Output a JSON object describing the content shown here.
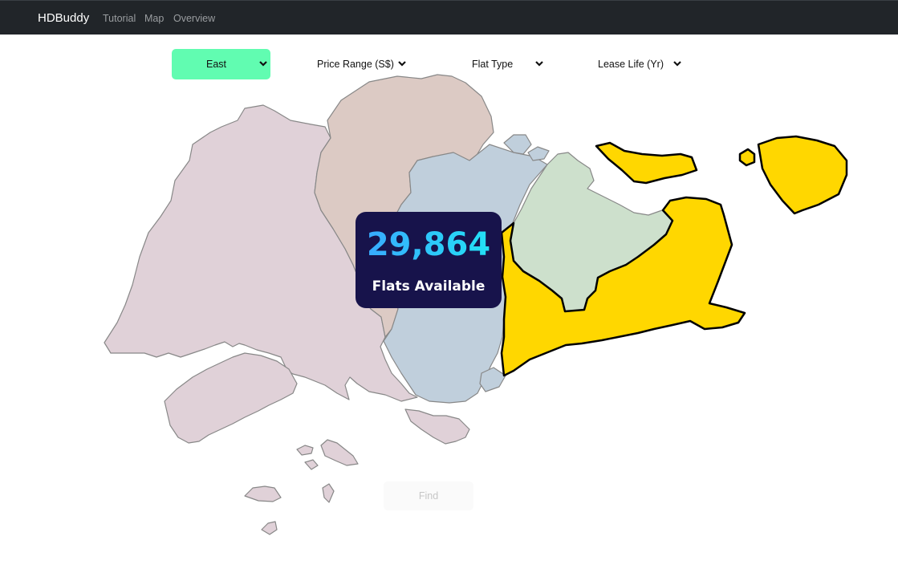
{
  "navbar": {
    "brand": "HDBuddy",
    "links": [
      "Tutorial",
      "Map",
      "Overview"
    ]
  },
  "filters": {
    "region": "East",
    "price_range": "Price Range (S$)",
    "flat_type": "Flat Type",
    "lease_life": "Lease Life (Yr)"
  },
  "map": {
    "selected_region": "East",
    "region_colors": {
      "west": "#e0d1d8",
      "north": "#dccac4",
      "central": "#c0cfdc",
      "north_east": "#cde0cc",
      "east": "#ffd700",
      "border": "#888888",
      "selected_border": "#000000"
    }
  },
  "stats": {
    "count": "29,864",
    "label": "Flats Available"
  },
  "find_button": "Find",
  "colors": {
    "navbar": "#212529",
    "accent": "#61fcb1",
    "card": "#17134b"
  }
}
